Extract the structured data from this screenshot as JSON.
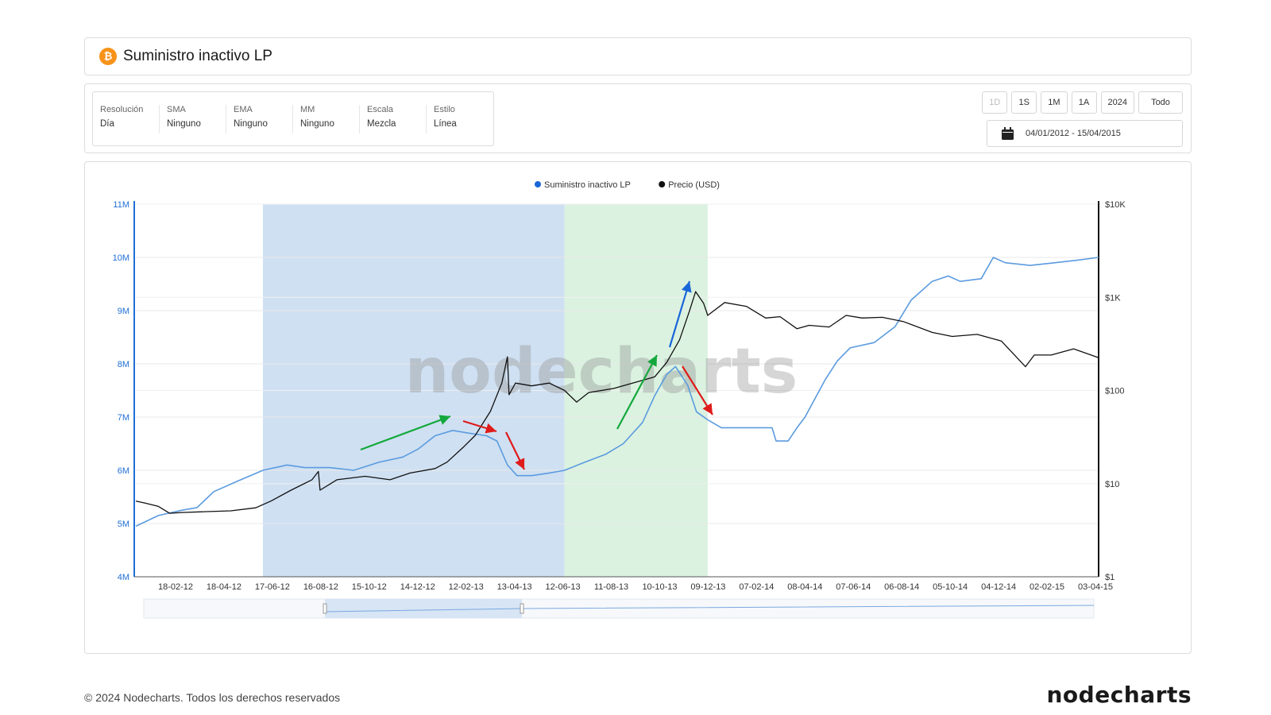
{
  "header": {
    "title": "Suministro inactivo LP",
    "coin_icon": "bitcoin-icon",
    "coin_symbol": "₿",
    "coin_color": "#f7931a"
  },
  "options": [
    {
      "label": "Resolución",
      "value": "Día"
    },
    {
      "label": "SMA",
      "value": "Ninguno"
    },
    {
      "label": "EMA",
      "value": "Ninguno"
    },
    {
      "label": "MM",
      "value": "Ninguno"
    },
    {
      "label": "Escala",
      "value": "Mezcla"
    },
    {
      "label": "Estilo",
      "value": "Línea"
    }
  ],
  "range_buttons": [
    {
      "label": "1D",
      "disabled": true
    },
    {
      "label": "1S",
      "disabled": false
    },
    {
      "label": "1M",
      "disabled": false
    },
    {
      "label": "1A",
      "disabled": false
    },
    {
      "label": "2024",
      "disabled": false
    },
    {
      "label": "Todo",
      "disabled": false
    }
  ],
  "date_range": "04/01/2012 - 15/04/2015",
  "footer": {
    "copyright": "© 2024 Nodecharts. Todos los derechos reservados",
    "logo": "nodecharts"
  },
  "chart_data": {
    "type": "line",
    "watermark": "nodecharts",
    "legend_position": "top-center",
    "x_tick_labels": [
      "18-02-12",
      "18-04-12",
      "17-06-12",
      "16-08-12",
      "15-10-12",
      "14-12-12",
      "12-02-13",
      "13-04-13",
      "12-06-13",
      "11-08-13",
      "10-10-13",
      "09-12-13",
      "07-02-14",
      "08-04-14",
      "07-06-14",
      "06-08-14",
      "05-10-14",
      "04-12-14",
      "02-02-15",
      "03-04-15"
    ],
    "x_range": [
      "2012-01-04",
      "2015-04-15"
    ],
    "y_left": {
      "label_ticks": [
        "4M",
        "5M",
        "6M",
        "7M",
        "8M",
        "9M",
        "10M",
        "11M"
      ],
      "range": [
        4000000,
        11000000
      ],
      "color": "#1f6fd6"
    },
    "y_right": {
      "scale": "log",
      "label_ticks": [
        "$1",
        "$10",
        "$100",
        "$1K",
        "$10K"
      ],
      "range": [
        1,
        10000
      ],
      "color": "#111111"
    },
    "grid": true,
    "shaded_regions": [
      {
        "from": "2012-06-10",
        "to": "2013-06-20",
        "color": "#cfe0f2"
      },
      {
        "from": "2013-06-20",
        "to": "2013-12-15",
        "color": "#dbf2e0"
      }
    ],
    "series": [
      {
        "name": "Suministro inactivo LP",
        "axis": "left",
        "color": "#5b9bdf",
        "legend_color": "#1a66d9",
        "points": [
          [
            "2012-01-04",
            4950000
          ],
          [
            "2012-02-01",
            5150000
          ],
          [
            "2012-03-01",
            5250000
          ],
          [
            "2012-03-20",
            5300000
          ],
          [
            "2012-04-10",
            5600000
          ],
          [
            "2012-05-10",
            5800000
          ],
          [
            "2012-06-10",
            6000000
          ],
          [
            "2012-07-10",
            6100000
          ],
          [
            "2012-08-01",
            6050000
          ],
          [
            "2012-09-01",
            6050000
          ],
          [
            "2012-10-01",
            6000000
          ],
          [
            "2012-11-01",
            6150000
          ],
          [
            "2012-12-01",
            6250000
          ],
          [
            "2012-12-20",
            6400000
          ],
          [
            "2013-01-10",
            6650000
          ],
          [
            "2013-02-01",
            6750000
          ],
          [
            "2013-02-20",
            6700000
          ],
          [
            "2013-03-15",
            6650000
          ],
          [
            "2013-03-28",
            6550000
          ],
          [
            "2013-04-10",
            6100000
          ],
          [
            "2013-04-22",
            5900000
          ],
          [
            "2013-05-10",
            5900000
          ],
          [
            "2013-06-01",
            5950000
          ],
          [
            "2013-06-20",
            6000000
          ],
          [
            "2013-07-15",
            6150000
          ],
          [
            "2013-08-10",
            6300000
          ],
          [
            "2013-09-01",
            6500000
          ],
          [
            "2013-09-25",
            6900000
          ],
          [
            "2013-10-10",
            7400000
          ],
          [
            "2013-10-25",
            7800000
          ],
          [
            "2013-11-05",
            7950000
          ],
          [
            "2013-11-20",
            7600000
          ],
          [
            "2013-12-01",
            7100000
          ],
          [
            "2013-12-15",
            6950000
          ],
          [
            "2014-01-01",
            6800000
          ],
          [
            "2014-02-01",
            6800000
          ],
          [
            "2014-03-05",
            6800000
          ],
          [
            "2014-03-10",
            6550000
          ],
          [
            "2014-03-25",
            6550000
          ],
          [
            "2014-04-05",
            6800000
          ],
          [
            "2014-04-15",
            7000000
          ],
          [
            "2014-05-10",
            7700000
          ],
          [
            "2014-05-25",
            8050000
          ],
          [
            "2014-06-10",
            8300000
          ],
          [
            "2014-07-10",
            8400000
          ],
          [
            "2014-08-05",
            8700000
          ],
          [
            "2014-08-25",
            9200000
          ],
          [
            "2014-09-20",
            9550000
          ],
          [
            "2014-10-10",
            9650000
          ],
          [
            "2014-10-25",
            9550000
          ],
          [
            "2014-11-20",
            9600000
          ],
          [
            "2014-12-05",
            10000000
          ],
          [
            "2014-12-20",
            9900000
          ],
          [
            "2015-01-20",
            9850000
          ],
          [
            "2015-02-20",
            9900000
          ],
          [
            "2015-03-20",
            9950000
          ],
          [
            "2015-04-15",
            10000000
          ]
        ]
      },
      {
        "name": "Precio (USD)",
        "axis": "right",
        "color": "#111111",
        "legend_color": "#111111",
        "points": [
          [
            "2012-01-04",
            6.5
          ],
          [
            "2012-01-15",
            6.2
          ],
          [
            "2012-02-01",
            5.7
          ],
          [
            "2012-02-15",
            4.8
          ],
          [
            "2012-03-01",
            4.9
          ],
          [
            "2012-04-01",
            5.0
          ],
          [
            "2012-05-01",
            5.1
          ],
          [
            "2012-06-01",
            5.5
          ],
          [
            "2012-06-20",
            6.5
          ],
          [
            "2012-07-15",
            8.5
          ],
          [
            "2012-08-10",
            11
          ],
          [
            "2012-08-18",
            13.5
          ],
          [
            "2012-08-20",
            8.5
          ],
          [
            "2012-09-10",
            11
          ],
          [
            "2012-10-15",
            12
          ],
          [
            "2012-11-15",
            11
          ],
          [
            "2012-12-10",
            13
          ],
          [
            "2013-01-10",
            14.5
          ],
          [
            "2013-01-25",
            17
          ],
          [
            "2013-02-15",
            25
          ],
          [
            "2013-03-01",
            33
          ],
          [
            "2013-03-20",
            60
          ],
          [
            "2013-04-03",
            120
          ],
          [
            "2013-04-10",
            230
          ],
          [
            "2013-04-12",
            90
          ],
          [
            "2013-04-20",
            120
          ],
          [
            "2013-05-10",
            112
          ],
          [
            "2013-06-01",
            120
          ],
          [
            "2013-06-20",
            100
          ],
          [
            "2013-07-05",
            75
          ],
          [
            "2013-07-20",
            95
          ],
          [
            "2013-08-20",
            105
          ],
          [
            "2013-09-20",
            125
          ],
          [
            "2013-10-10",
            140
          ],
          [
            "2013-10-25",
            200
          ],
          [
            "2013-11-10",
            350
          ],
          [
            "2013-11-22",
            700
          ],
          [
            "2013-11-30",
            1150
          ],
          [
            "2013-12-10",
            860
          ],
          [
            "2013-12-15",
            640
          ],
          [
            "2014-01-05",
            880
          ],
          [
            "2014-02-01",
            800
          ],
          [
            "2014-02-25",
            600
          ],
          [
            "2014-03-15",
            620
          ],
          [
            "2014-04-05",
            460
          ],
          [
            "2014-04-20",
            500
          ],
          [
            "2014-05-15",
            480
          ],
          [
            "2014-06-05",
            640
          ],
          [
            "2014-06-25",
            600
          ],
          [
            "2014-07-20",
            610
          ],
          [
            "2014-08-15",
            550
          ],
          [
            "2014-09-20",
            420
          ],
          [
            "2014-10-15",
            380
          ],
          [
            "2014-11-15",
            400
          ],
          [
            "2014-12-15",
            340
          ],
          [
            "2015-01-14",
            180
          ],
          [
            "2015-01-25",
            240
          ],
          [
            "2015-02-15",
            240
          ],
          [
            "2015-03-15",
            280
          ],
          [
            "2015-04-15",
            225
          ]
        ]
      }
    ]
  }
}
